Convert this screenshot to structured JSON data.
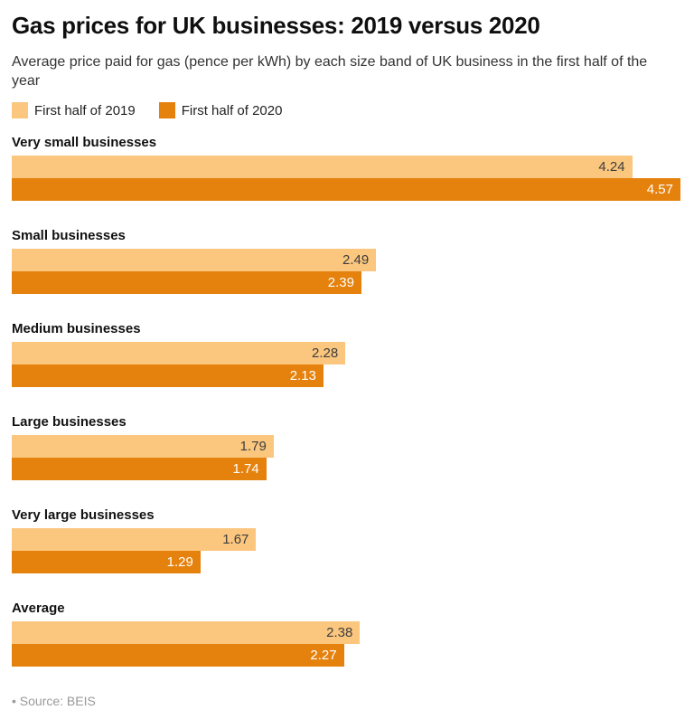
{
  "header": {
    "title": "Gas prices for UK businesses: 2019 versus 2020",
    "subtitle": "Average price paid for gas (pence per kWh) by each size band of UK business in the first half of the year"
  },
  "legend": [
    {
      "label": "First half of 2019",
      "color": "#fbc67e"
    },
    {
      "label": "First half of 2020",
      "color": "#e5810d"
    }
  ],
  "chart_data": {
    "type": "bar",
    "orientation": "horizontal",
    "title": "Gas prices for UK businesses: 2019 versus 2020",
    "subtitle": "Average price paid for gas (pence per kWh) by each size band of UK business in the first half of the year",
    "xlabel": "",
    "ylabel": "",
    "xlim": [
      0,
      4.57
    ],
    "grid": false,
    "legend_position": "top-left",
    "value_labels": "inside-end",
    "categories": [
      "Very small businesses",
      "Small businesses",
      "Medium businesses",
      "Large businesses",
      "Very large businesses",
      "Average"
    ],
    "series": [
      {
        "name": "First half of 2019",
        "color": "#fbc67e",
        "label_color": "#3d3d3d",
        "values": [
          4.24,
          2.49,
          2.28,
          1.79,
          1.67,
          2.38
        ]
      },
      {
        "name": "First half of 2020",
        "color": "#e5810d",
        "label_color": "#ffffff",
        "values": [
          4.57,
          2.39,
          2.13,
          1.74,
          1.29,
          2.27
        ]
      }
    ]
  },
  "footer": {
    "bullet": "•",
    "source": "Source: BEIS"
  }
}
